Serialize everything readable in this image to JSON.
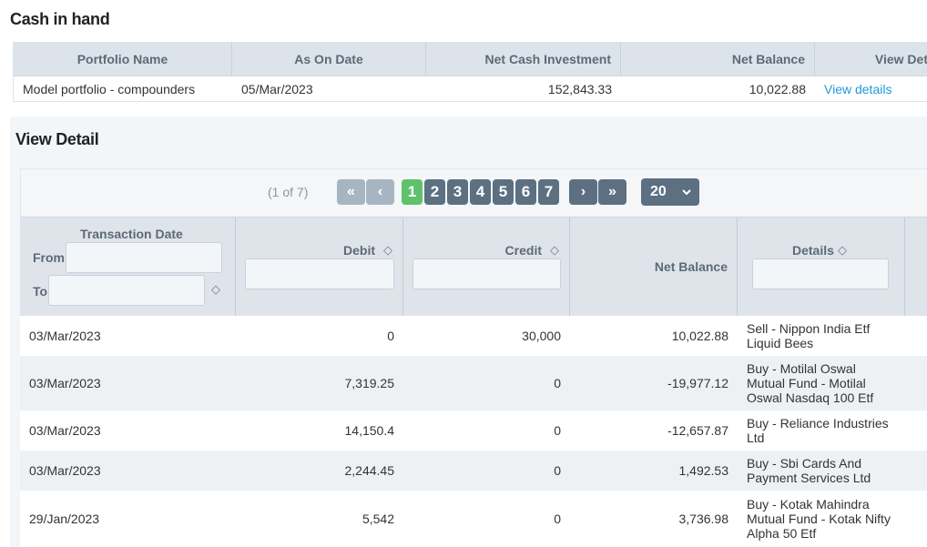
{
  "cash": {
    "title": "Cash in hand",
    "headers": [
      "Portfolio Name",
      "As On Date",
      "Net Cash Investment",
      "Net Balance",
      "View Det"
    ],
    "row": {
      "portfolio": "Model portfolio - compounders",
      "date": "05/Mar/2023",
      "net_cash_investment": "152,843.33",
      "net_balance": "10,022.88",
      "link": "View details"
    }
  },
  "detail": {
    "title": "View Detail",
    "paginator": {
      "info": "(1 of 7)",
      "first": "«",
      "prev": "‹",
      "next": "›",
      "last": "»",
      "pages": [
        "1",
        "2",
        "3",
        "4",
        "5",
        "6",
        "7"
      ],
      "current_page": "1",
      "rows_per_page": "20",
      "dropdown_icon": "chevron-down-icon"
    },
    "columns": {
      "date": "Transaction Date",
      "from": "From:",
      "to": "To:",
      "debit": "Debit",
      "credit": "Credit",
      "net_balance": "Net Balance",
      "details": "Details",
      "sort_icon": "sort-icon"
    },
    "rows": [
      {
        "date": "03/Mar/2023",
        "debit": "0",
        "credit": "30,000",
        "net": "10,022.88",
        "details": [
          "Sell - Nippon India Etf",
          "Liquid Bees"
        ]
      },
      {
        "date": "03/Mar/2023",
        "debit": "7,319.25",
        "credit": "0",
        "net": "-19,977.12",
        "details": [
          "Buy - Motilal Oswal",
          "Mutual Fund - Motilal",
          "Oswal Nasdaq 100 Etf"
        ]
      },
      {
        "date": "03/Mar/2023",
        "debit": "14,150.4",
        "credit": "0",
        "net": "-12,657.87",
        "details": [
          "Buy - Reliance Industries",
          "Ltd"
        ]
      },
      {
        "date": "03/Mar/2023",
        "debit": "2,244.45",
        "credit": "0",
        "net": "1,492.53",
        "details": [
          "Buy - Sbi Cards And",
          "Payment Services Ltd"
        ]
      },
      {
        "date": "29/Jan/2023",
        "debit": "5,542",
        "credit": "0",
        "net": "3,736.98",
        "details": [
          "Buy - Kotak Mahindra",
          "Mutual Fund - Kotak Nifty",
          "Alpha 50 Etf"
        ]
      }
    ]
  }
}
